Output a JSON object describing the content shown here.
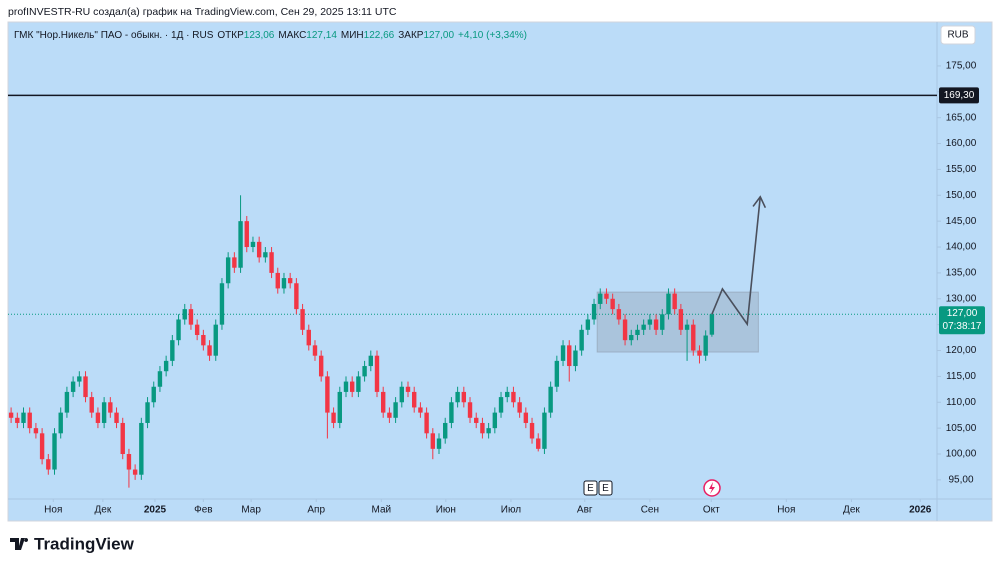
{
  "header": "profINVESTR-RU создал(а) график на TradingView.com, Сен 29, 2025 13:11 UTC",
  "footer_logo": "TradingView",
  "currency_button": "RUB",
  "event_markers": [
    "E",
    "E"
  ],
  "chart_data": {
    "type": "candlestick",
    "symbol": "ГМК \"Нор.Никель\" ПАО - обыкн. · 1Д · RUS",
    "ohlc_legend": [
      {
        "label": "ОТКР",
        "text": "123,06"
      },
      {
        "label": "МАКС",
        "text": "127,14"
      },
      {
        "label": "МИН",
        "text": "122,66"
      },
      {
        "label": "ЗАКР",
        "text": "127,00"
      }
    ],
    "change": "+4,10 (+3,34%)",
    "up_color": "#089981",
    "down_color": "#f23645",
    "open": [
      108,
      107,
      106,
      108,
      105,
      104,
      99,
      97,
      104,
      108,
      112,
      114,
      115,
      111,
      108,
      106,
      110,
      108,
      106,
      100,
      97,
      96,
      106,
      110,
      113,
      116,
      118,
      122,
      126,
      128,
      125,
      123,
      121,
      119,
      125,
      133,
      138,
      136,
      145,
      140,
      141,
      138,
      139,
      135,
      132,
      134,
      133,
      128,
      124,
      121,
      119,
      115,
      108,
      106,
      112,
      114,
      112,
      115,
      117,
      119,
      112,
      108,
      107,
      110,
      113,
      112,
      109,
      108,
      104,
      101,
      103,
      106,
      110,
      112,
      110,
      107,
      106,
      104,
      105,
      108,
      111,
      112,
      110,
      108,
      106,
      103,
      101,
      108,
      113,
      118,
      121,
      117,
      120,
      124,
      126,
      129,
      131,
      130,
      128,
      126,
      122,
      123,
      124,
      125,
      126,
      124,
      127,
      131,
      128,
      124,
      125,
      120,
      119,
      123.06
    ],
    "high": [
      109,
      108,
      109,
      109,
      106,
      105,
      100,
      105,
      109,
      113,
      115,
      116,
      116,
      112,
      109,
      111,
      111,
      109,
      107,
      101,
      98,
      107,
      111,
      114,
      117,
      119,
      123,
      127,
      129,
      129,
      126,
      124,
      122,
      126,
      134,
      139,
      139,
      150,
      146,
      142,
      142,
      140,
      140,
      136,
      135,
      135,
      134,
      129,
      125,
      122,
      120,
      116,
      109,
      113,
      115,
      115,
      116,
      118,
      120,
      120,
      113,
      109,
      111,
      114,
      114,
      113,
      110,
      109,
      105,
      104,
      107,
      111,
      113,
      113,
      111,
      108,
      107,
      106,
      109,
      112,
      113,
      113,
      111,
      109,
      107,
      104,
      109,
      114,
      119,
      122,
      122,
      121,
      125,
      127,
      130,
      132,
      132,
      131,
      129,
      127,
      124,
      125,
      126,
      127,
      127,
      128,
      132,
      132,
      129,
      126,
      126,
      121,
      123.9,
      127.14
    ],
    "low": [
      106,
      105,
      105,
      104,
      103,
      98,
      96,
      96,
      103,
      107,
      111,
      113,
      110,
      107,
      105,
      105,
      107,
      105,
      99,
      93.5,
      95,
      95,
      105,
      109,
      112,
      115,
      117,
      121,
      125,
      124,
      122,
      120,
      118,
      118,
      124,
      132,
      135,
      135,
      139,
      139,
      137,
      137,
      134,
      131,
      131,
      132,
      127,
      123,
      120,
      118,
      114,
      103,
      105,
      105,
      111,
      111,
      111,
      114,
      116,
      111,
      107,
      106,
      106,
      109,
      111,
      108,
      107,
      103,
      99,
      100,
      102,
      105,
      109,
      109,
      106,
      105,
      103,
      103,
      104,
      107,
      110,
      109,
      107,
      105,
      102,
      100.5,
      100,
      107,
      112,
      117,
      114,
      116,
      119,
      123,
      125,
      128,
      129,
      127,
      125,
      121,
      121,
      122,
      123,
      124,
      123,
      123,
      126,
      127,
      123,
      118,
      119,
      117.5,
      118,
      122.66
    ],
    "close": [
      107,
      106,
      108,
      105,
      104,
      99,
      97,
      104,
      108,
      112,
      114,
      115,
      111,
      108,
      106,
      110,
      108,
      106,
      100,
      97,
      96,
      106,
      110,
      113,
      116,
      118,
      122,
      126,
      128,
      125,
      123,
      121,
      119,
      125,
      133,
      138,
      136,
      145,
      140,
      141,
      138,
      139,
      135,
      132,
      134,
      133,
      128,
      124,
      121,
      119,
      115,
      108,
      106,
      112,
      114,
      112,
      115,
      117,
      119,
      112,
      108,
      107,
      110,
      113,
      112,
      109,
      108,
      104,
      101,
      103,
      106,
      110,
      112,
      110,
      107,
      106,
      104,
      105,
      108,
      111,
      112,
      110,
      108,
      106,
      103,
      101,
      108,
      113,
      118,
      121,
      117,
      120,
      124,
      126,
      129,
      131,
      130,
      128,
      126,
      122,
      123,
      124,
      125,
      126,
      124,
      127,
      131,
      128,
      124,
      125,
      120,
      119,
      122.9,
      127
    ],
    "xlim": [
      -0.5,
      149.3
    ],
    "xticks": [
      {
        "value": 6.8,
        "label": "Ноя"
      },
      {
        "value": 14.8,
        "label": "Дек"
      },
      {
        "value": 23.2,
        "label": "2025"
      },
      {
        "value": 31,
        "label": "Фев"
      },
      {
        "value": 38.7,
        "label": "Мар"
      },
      {
        "value": 49.2,
        "label": "Апр"
      },
      {
        "value": 59.7,
        "label": "Май"
      },
      {
        "value": 70.1,
        "label": "Июн"
      },
      {
        "value": 80.6,
        "label": "Июл"
      },
      {
        "value": 92.5,
        "label": "Авг"
      },
      {
        "value": 103,
        "label": "Сен"
      },
      {
        "value": 112.9,
        "label": "Окт"
      },
      {
        "value": 125,
        "label": "Ноя"
      },
      {
        "value": 135.5,
        "label": "Дек"
      },
      {
        "value": 146.6,
        "label": "2026"
      }
    ],
    "ylim": [
      91.5,
      183.1
    ],
    "yticks": [
      {
        "value": 95,
        "label": "95,00"
      },
      {
        "value": 100,
        "label": "100,00"
      },
      {
        "value": 105,
        "label": "105,00"
      },
      {
        "value": 110,
        "label": "110,00"
      },
      {
        "value": 115,
        "label": "115,00"
      },
      {
        "value": 120,
        "label": "120,00"
      },
      {
        "value": 125,
        "label": "125,00"
      },
      {
        "value": 130,
        "label": "130,00"
      },
      {
        "value": 135,
        "label": "135,00"
      },
      {
        "value": 140,
        "label": "140,00"
      },
      {
        "value": 145,
        "label": "145,00"
      },
      {
        "value": 150,
        "label": "150,00"
      },
      {
        "value": 155,
        "label": "155,00"
      },
      {
        "value": 160,
        "label": "160,00"
      },
      {
        "value": 165,
        "label": "165,00"
      },
      {
        "value": 170,
        "label": "170,00"
      },
      {
        "value": 175,
        "label": "175,00"
      }
    ],
    "level_line": {
      "value": 169.3,
      "label": "169,30",
      "color": "#131722"
    },
    "last_price": {
      "value": 127,
      "label": "127,00",
      "countdown": "07:38:17",
      "color": "#089981"
    },
    "box": {
      "x": [
        94.5,
        120.5
      ],
      "y": [
        119.7,
        131.3
      ]
    },
    "arrow": {
      "x": [
        113,
        114.7,
        118.7,
        120.8
      ],
      "y": [
        127,
        131.9,
        125.1,
        149.7
      ]
    }
  }
}
